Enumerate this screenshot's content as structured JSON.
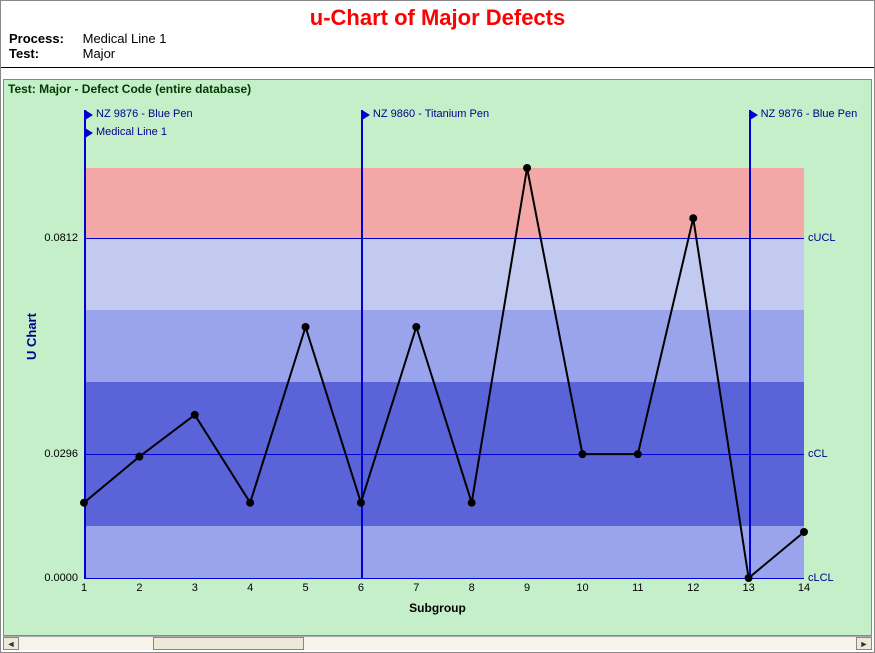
{
  "title": "u-Chart of Major Defects",
  "meta": {
    "process_label": "Process:",
    "process_value": "Medical Line 1",
    "test_label": "Test:",
    "test_value": "Major"
  },
  "subtitle": "Test: Major - Defect Code (entire database)",
  "y_axis_title": "U Chart",
  "x_axis_title": "Subgroup",
  "chart": {
    "type": "u-chart-line",
    "x_values": [
      1,
      2,
      3,
      4,
      5,
      6,
      7,
      8,
      9,
      10,
      11,
      12,
      13,
      14
    ],
    "y_values": [
      0.018,
      0.029,
      0.039,
      0.018,
      0.06,
      0.018,
      0.06,
      0.018,
      0.098,
      0.0296,
      0.0296,
      0.086,
      0.0,
      0.011
    ],
    "y_ticks": [
      0.0,
      0.0296,
      0.0812
    ],
    "y_tick_labels": [
      "0.0000",
      "0.0296",
      "0.0812"
    ],
    "xlim": [
      1,
      14
    ],
    "ylim": [
      0.0,
      0.098
    ],
    "cl": 0.0296,
    "ucl": 0.0812,
    "lcl": 0.0,
    "sigma": 0.0172,
    "limit_labels": {
      "ucl": "cUCL",
      "cl": "cCL",
      "lcl": "cLCL"
    },
    "band_colors": {
      "beyond": "#f3a7a7",
      "zoneA": "#c2caf0",
      "zoneB": "#99a4ec",
      "zoneC": "#5a63d8",
      "outer_bg": "#dde2fa"
    },
    "line_color": "#000000",
    "line_width": 2,
    "marker_radius": 4,
    "marker_color": "#000000",
    "grid_color": "#0000d0",
    "background_color": "#c5efc8",
    "vlines": [
      {
        "x": 1,
        "labels": [
          "NZ 9876 - Blue Pen",
          "Medical Line 1"
        ]
      },
      {
        "x": 6,
        "labels": [
          "NZ 9860 - Titanium Pen"
        ]
      },
      {
        "x": 13,
        "labels": [
          "NZ 9876 - Blue Pen"
        ]
      }
    ],
    "title_color": "#ff0000",
    "title_fontsize": 22,
    "axis_label_color": "#00008b"
  }
}
